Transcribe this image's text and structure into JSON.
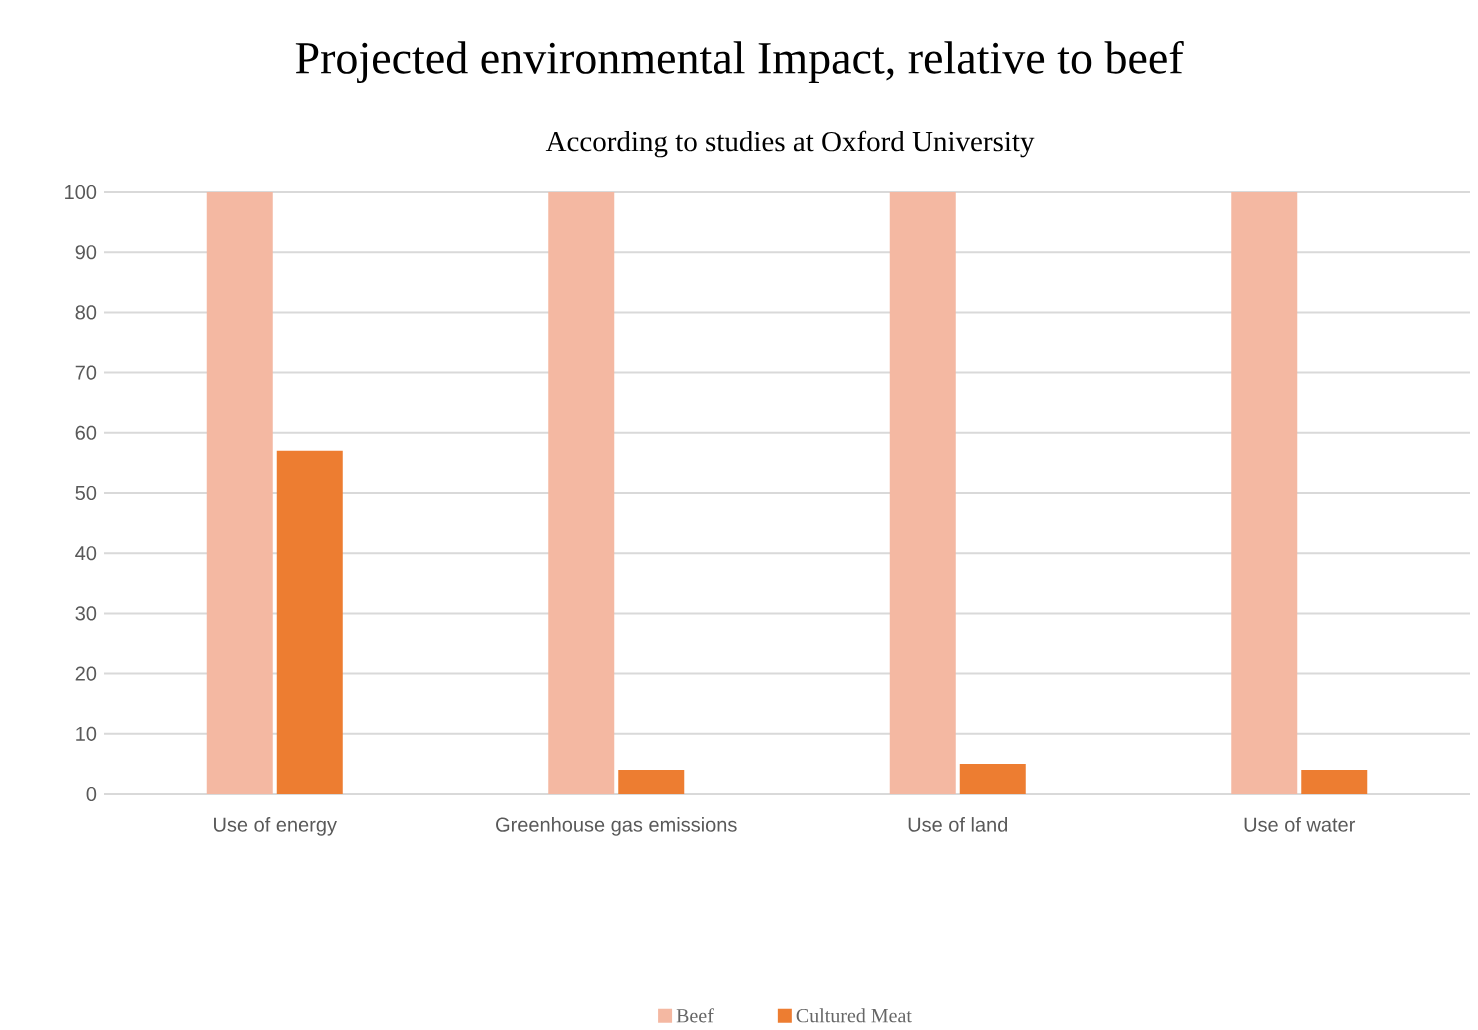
{
  "chart_data": {
    "type": "bar",
    "title": "Projected environmental Impact, relative to beef",
    "subtitle": "According to studies at Oxford University",
    "categories": [
      "Use of energy",
      "Greenhouse gas emissions",
      "Use of land",
      "Use of water"
    ],
    "series": [
      {
        "name": "Beef",
        "color": "#f4b8a2",
        "values": [
          100,
          100,
          100,
          100
        ]
      },
      {
        "name": "Cultured Meat",
        "color": "#ed7d31",
        "values": [
          57,
          4,
          5,
          4
        ]
      }
    ],
    "ylim": [
      0,
      100
    ],
    "yticks": [
      0,
      10,
      20,
      30,
      40,
      50,
      60,
      70,
      80,
      90,
      100
    ],
    "grid": "y",
    "legend": "bottom"
  }
}
